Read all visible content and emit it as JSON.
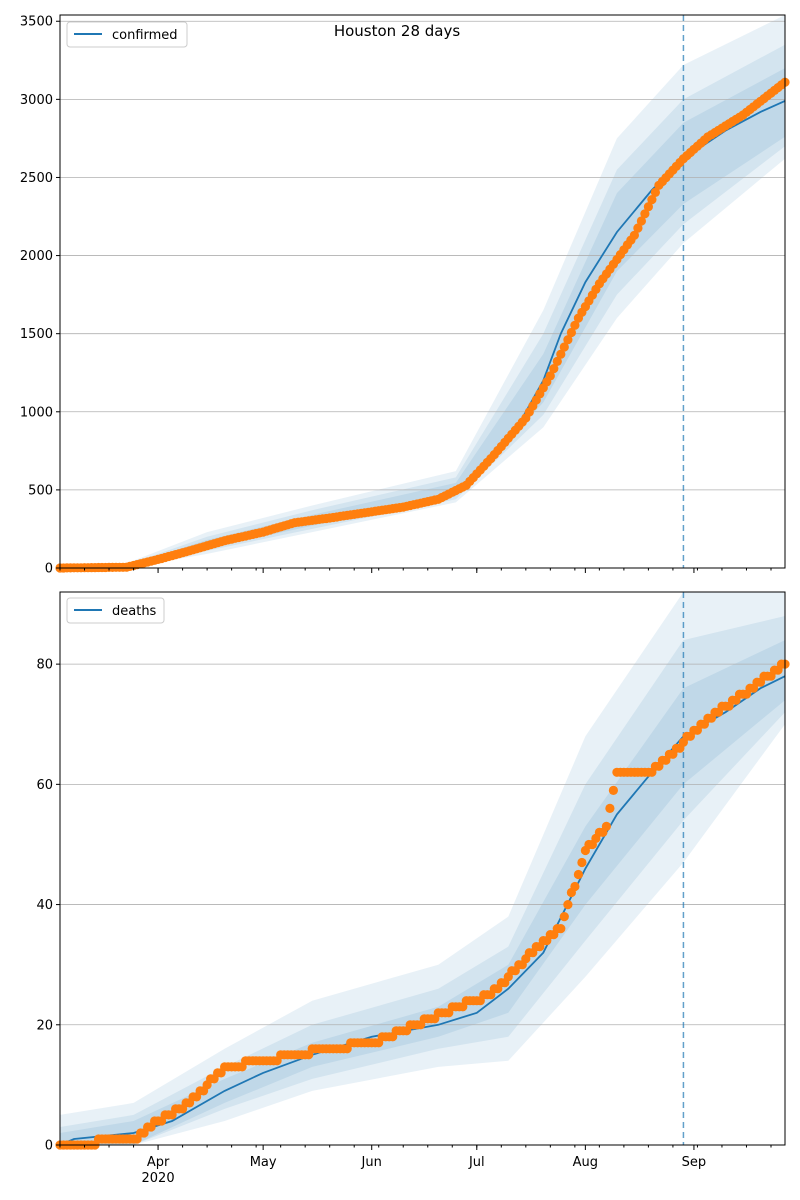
{
  "colors": {
    "model_line": "#1f77b4",
    "observed_points": "#ff7f0e",
    "band": "#1f77b4",
    "grid": "#b0b0b0",
    "forecast_line": "#1f77b4"
  },
  "chart_data": [
    {
      "type": "line",
      "title": "Houston 28 days",
      "legend": {
        "labels": [
          "confirmed"
        ],
        "placement": "top-left"
      },
      "grid": "y",
      "x_axis": {
        "type": "date",
        "range": [
          "2020-03-04",
          "2020-09-27"
        ],
        "tick_labels": []
      },
      "y_axis": {
        "range": [
          0,
          3540
        ],
        "ticks": [
          "0",
          "500",
          "1000",
          "1500",
          "2000",
          "2500",
          "3000",
          "3500"
        ]
      },
      "forecast_start": "2020-08-29",
      "model_curve": {
        "name": "confirmed",
        "x": [
          "2020-03-04",
          "2020-03-23",
          "2020-04-01",
          "2020-04-15",
          "2020-05-01",
          "2020-05-15",
          "2020-06-01",
          "2020-06-15",
          "2020-06-25",
          "2020-07-01",
          "2020-07-10",
          "2020-07-20",
          "2020-07-25",
          "2020-08-01",
          "2020-08-10",
          "2020-08-20",
          "2020-08-29",
          "2020-09-10",
          "2020-09-20",
          "2020-09-27"
        ],
        "y": [
          0,
          5,
          50,
          150,
          240,
          300,
          360,
          420,
          500,
          600,
          800,
          1200,
          1500,
          1830,
          2150,
          2420,
          2620,
          2800,
          2920,
          2990
        ]
      },
      "bands": [
        {
          "x": [
            "2020-03-04",
            "2020-03-23",
            "2020-04-15",
            "2020-05-15",
            "2020-06-25",
            "2020-07-20",
            "2020-08-10",
            "2020-08-29",
            "2020-09-27"
          ],
          "lower": [
            0,
            0,
            90,
            230,
            420,
            900,
            1600,
            2080,
            2620
          ],
          "upper": [
            0,
            30,
            230,
            400,
            620,
            1650,
            2750,
            3220,
            3540
          ]
        },
        {
          "x": [
            "2020-03-04",
            "2020-03-23",
            "2020-04-15",
            "2020-05-15",
            "2020-06-25",
            "2020-07-20",
            "2020-08-10",
            "2020-08-29",
            "2020-09-27"
          ],
          "lower": [
            0,
            0,
            110,
            250,
            440,
            980,
            1750,
            2200,
            2700
          ],
          "upper": [
            0,
            20,
            200,
            370,
            580,
            1500,
            2550,
            3000,
            3350
          ]
        },
        {
          "x": [
            "2020-03-04",
            "2020-03-23",
            "2020-04-15",
            "2020-05-15",
            "2020-06-25",
            "2020-07-20",
            "2020-08-10",
            "2020-08-29",
            "2020-09-27"
          ],
          "lower": [
            0,
            0,
            125,
            270,
            460,
            1060,
            1900,
            2330,
            2760
          ],
          "upper": [
            0,
            12,
            180,
            340,
            545,
            1370,
            2400,
            2850,
            3200
          ]
        }
      ],
      "observed": {
        "x": [
          "2020-03-04",
          "2020-03-23",
          "2020-04-01",
          "2020-04-10",
          "2020-04-20",
          "2020-05-01",
          "2020-05-10",
          "2020-05-20",
          "2020-06-01",
          "2020-06-10",
          "2020-06-20",
          "2020-06-28",
          "2020-07-05",
          "2020-07-15",
          "2020-07-22",
          "2020-07-30",
          "2020-08-05",
          "2020-08-15",
          "2020-08-22",
          "2020-08-29",
          "2020-09-05",
          "2020-09-15",
          "2020-09-27"
        ],
        "y": [
          0,
          5,
          55,
          110,
          175,
          230,
          290,
          320,
          360,
          390,
          440,
          530,
          700,
          960,
          1230,
          1600,
          1820,
          2130,
          2450,
          2620,
          2760,
          2900,
          3110
        ]
      }
    },
    {
      "type": "line",
      "title": "",
      "legend": {
        "labels": [
          "deaths"
        ],
        "placement": "top-left"
      },
      "grid": "y",
      "x_axis": {
        "type": "date",
        "range": [
          "2020-03-04",
          "2020-09-27"
        ],
        "tick_labels": [
          "Apr\n2020",
          "May",
          "Jun",
          "Jul",
          "Aug",
          "Sep"
        ],
        "tick_dates": [
          "2020-04-01",
          "2020-05-01",
          "2020-06-01",
          "2020-07-01",
          "2020-08-01",
          "2020-09-01"
        ]
      },
      "y_axis": {
        "range": [
          0,
          92
        ],
        "ticks": [
          "0",
          "20",
          "40",
          "60",
          "80"
        ]
      },
      "forecast_start": "2020-08-29",
      "model_curve": {
        "name": "deaths",
        "x": [
          "2020-03-04",
          "2020-03-08",
          "2020-03-25",
          "2020-04-05",
          "2020-04-20",
          "2020-05-01",
          "2020-05-15",
          "2020-06-01",
          "2020-06-20",
          "2020-07-01",
          "2020-07-10",
          "2020-07-20",
          "2020-08-01",
          "2020-08-10",
          "2020-08-20",
          "2020-08-29",
          "2020-09-10",
          "2020-09-20",
          "2020-09-27"
        ],
        "y": [
          0,
          1,
          2,
          4,
          9,
          12,
          15,
          18,
          20,
          22,
          26,
          32,
          46,
          55,
          62,
          68,
          72,
          76,
          78
        ]
      },
      "bands": [
        {
          "x": [
            "2020-03-04",
            "2020-03-25",
            "2020-04-20",
            "2020-05-15",
            "2020-06-20",
            "2020-07-10",
            "2020-08-01",
            "2020-08-29",
            "2020-09-27"
          ],
          "lower": [
            0,
            0,
            4,
            9,
            13,
            14,
            28,
            47,
            70
          ],
          "upper": [
            5,
            7,
            16,
            24,
            30,
            38,
            68,
            92,
            92
          ]
        },
        {
          "x": [
            "2020-03-04",
            "2020-03-25",
            "2020-04-20",
            "2020-05-15",
            "2020-06-20",
            "2020-07-10",
            "2020-08-01",
            "2020-08-29",
            "2020-09-27"
          ],
          "lower": [
            0,
            0,
            6,
            11,
            16,
            18,
            34,
            54,
            72
          ],
          "upper": [
            3,
            5,
            13,
            20,
            26,
            33,
            60,
            84,
            88
          ]
        },
        {
          "x": [
            "2020-03-04",
            "2020-03-25",
            "2020-04-20",
            "2020-05-15",
            "2020-06-20",
            "2020-07-10",
            "2020-08-01",
            "2020-08-29",
            "2020-09-27"
          ],
          "lower": [
            0,
            0,
            7,
            13,
            18,
            22,
            40,
            60,
            74
          ],
          "upper": [
            2,
            4,
            11,
            17,
            23,
            30,
            53,
            76,
            84
          ]
        }
      ],
      "observed": {
        "x": [
          "2020-03-04",
          "2020-03-26",
          "2020-04-01",
          "2020-04-10",
          "2020-04-20",
          "2020-05-01",
          "2020-05-10",
          "2020-05-20",
          "2020-06-01",
          "2020-06-10",
          "2020-06-25",
          "2020-07-05",
          "2020-07-15",
          "2020-07-25",
          "2020-08-01",
          "2020-08-07",
          "2020-08-10",
          "2020-08-20",
          "2020-08-29",
          "2020-09-05",
          "2020-09-15",
          "2020-09-27"
        ],
        "y": [
          0,
          1,
          4,
          7,
          13,
          14,
          15,
          16,
          17,
          19,
          23,
          25,
          31,
          36,
          49,
          53,
          62,
          62,
          67,
          71,
          75,
          80
        ]
      }
    }
  ]
}
